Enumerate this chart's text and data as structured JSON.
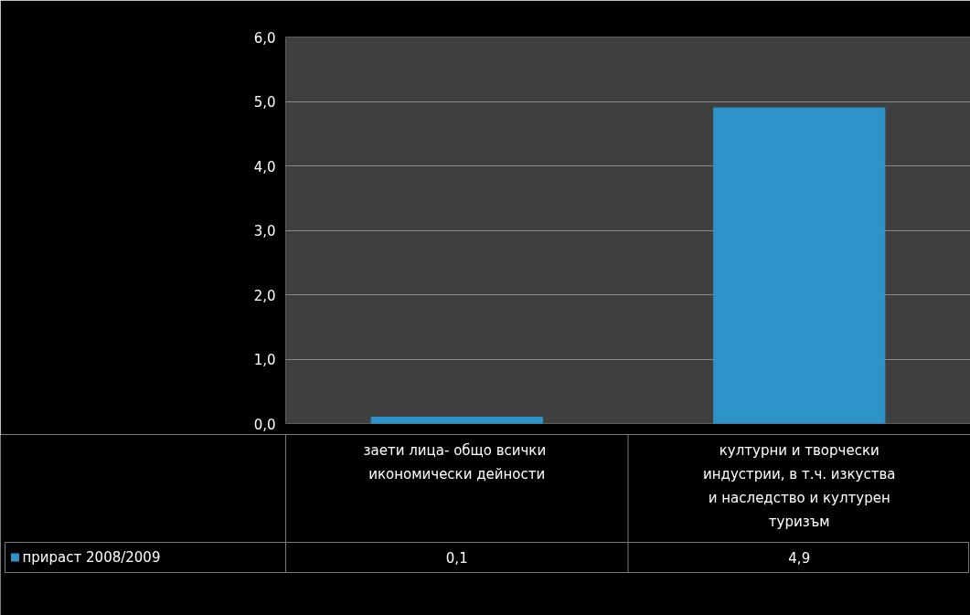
{
  "chart_data": {
    "type": "bar",
    "categories": [
      "заети лица- общо  всички икономически дейности",
      "културни и творчески индустрии, в т.ч. изкуства и наследство и културен туризъм"
    ],
    "series": [
      {
        "name": "прираст 2008/2009",
        "color": "#2e93c8",
        "values": [
          0.1,
          4.9
        ],
        "value_labels": [
          "0,1",
          "4,9"
        ]
      }
    ],
    "ylim": [
      0,
      6
    ],
    "yticks": [
      {
        "value": 0,
        "label": "0,0"
      },
      {
        "value": 1,
        "label": "1,0"
      },
      {
        "value": 2,
        "label": "2,0"
      },
      {
        "value": 3,
        "label": "3,0"
      },
      {
        "value": 4,
        "label": "4,0"
      },
      {
        "value": 5,
        "label": "5,0"
      },
      {
        "value": 6,
        "label": "6,0"
      }
    ],
    "grid": "y"
  }
}
